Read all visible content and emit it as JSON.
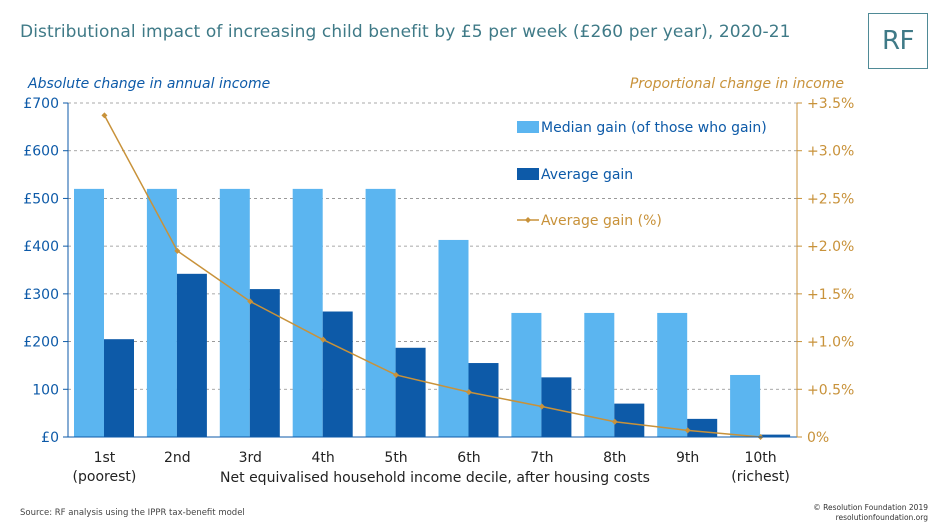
{
  "header": {
    "title": "Distributional impact of increasing child benefit by £5 per week (£260 per year), 2020-21",
    "logo": "RF"
  },
  "footer": {
    "source": "Source: RF analysis using the IPPR tax-benefit model",
    "copyright": "© Resolution Foundation 2019",
    "site": "resolutionfoundation.org"
  },
  "chart_data": {
    "type": "bar",
    "categories": [
      "1st\n(poorest)",
      "2nd",
      "3rd",
      "4th",
      "5th",
      "6th",
      "7th",
      "8th",
      "9th",
      "10th\n(richest)"
    ],
    "series": [
      {
        "name": "Median gain (of those who gain)",
        "type": "bar",
        "axis": "left",
        "color": "#5bb5f0",
        "values": [
          520,
          520,
          520,
          520,
          520,
          413,
          260,
          260,
          260,
          130
        ]
      },
      {
        "name": "Average gain",
        "type": "bar",
        "axis": "left",
        "color": "#0d5aa8",
        "values": [
          205,
          342,
          310,
          263,
          187,
          155,
          125,
          70,
          38,
          5
        ]
      },
      {
        "name": "Average gain (%)",
        "type": "line",
        "axis": "right",
        "color": "#c8923a",
        "values": [
          3.37,
          1.95,
          1.42,
          1.02,
          0.65,
          0.47,
          0.32,
          0.16,
          0.07,
          0.0
        ]
      }
    ],
    "left_axis": {
      "title": "Absolute change in annual income",
      "ylim": [
        0,
        700
      ],
      "ticks": [
        "£0",
        "100",
        "£200",
        "£300",
        "£400",
        "£500",
        "£600",
        "£700"
      ],
      "color": "#0d5aa8"
    },
    "right_axis": {
      "title": "Proportional change in income",
      "ylim": [
        0,
        3.5
      ],
      "ticks": [
        "0%",
        "+0.5%",
        "+1.0%",
        "+1.5%",
        "+2.0%",
        "+2.5%",
        "+3.0%",
        "+3.5%"
      ],
      "color": "#c8923a"
    },
    "xlabel": "Net equivalised household income decile, after housing costs",
    "grid": true,
    "legend": "top-right"
  }
}
